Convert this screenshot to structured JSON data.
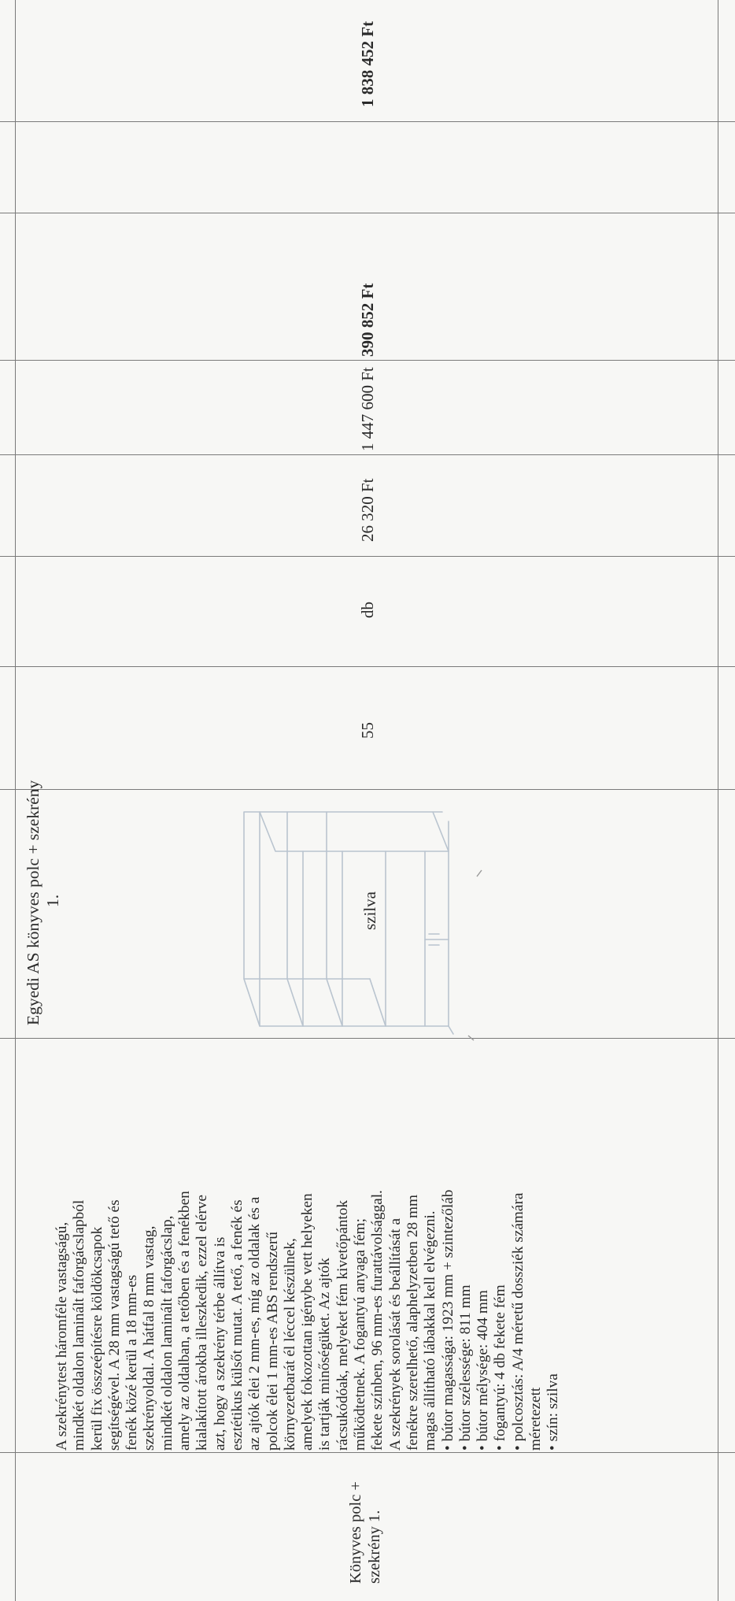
{
  "row": {
    "item_name": [
      "Könyves polc +",
      "szekrény 1."
    ],
    "description_lines": [
      "A szekrénytest háromféle vastagságú,",
      "mindkét oldalon laminált faforgácslapból",
      "kerül fix összeépítésre köldökcsapok",
      "segítségével. A 28 mm vastagságú tető és",
      "fenék közé kerül a 18 mm-es",
      "szekrényoldal. A hátfal 8 mm vastag,",
      "mindkét oldalon laminált faforgácslap,",
      "amely az oldalban, a tetőben és a fenékben",
      "kialakított árokba illeszkedik, ezzel elérve",
      "azt, hogy a szekrény térbe állítva is",
      "esztétikus külsőt mutat. A tető, a fenék és",
      "az ajtók élei 2 mm-es, míg az oldalak és a",
      "polcok élei 1 mm-es ABS rendszerű",
      "környezetbarát él léccel készülnek,",
      "amelyek fokozottan igénybe vett helyeken",
      "is tartják minőségüket. Az ajtók",
      "rácsukódóak, melyeket fém kivetőpántok",
      "működtetnek. A fogantyú anyaga fém;",
      "fekete színben, 96 mm-es furattávolsággal.",
      "A szekrények sorolását és beállítását a",
      "fenékre szerelhető, alaphelyzetben 28 mm",
      "magas állítható lábakkal kell elvégezni.",
      "• bútor magassága: 1923 mm + szintezőláb",
      "• bútor szélessége: 811 mm",
      "• bútor mélysége: 404 mm",
      "• fogantyú: 4 db fekete fém",
      "• polcosztás: A/4 méretű dossziék számára",
      "méretezett",
      "• szín: szilva"
    ],
    "product_title": [
      "Egyedi AS könyves polc + szekrény",
      "1."
    ],
    "color": "szilva",
    "quantity": "55",
    "unit": "db",
    "unit_price": "26 320 Ft",
    "net_total": "1 447 600 Ft",
    "vat": "390 852 Ft",
    "gross_total": "1 838 452 Ft"
  }
}
